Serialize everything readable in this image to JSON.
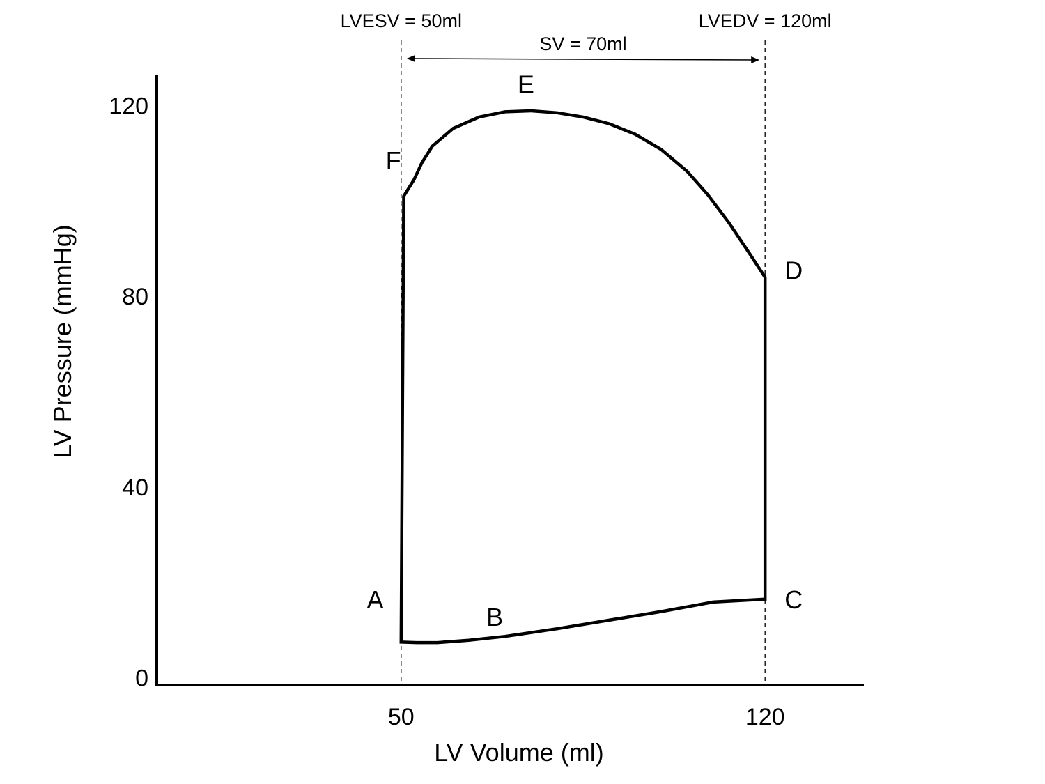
{
  "chart_data": {
    "type": "line",
    "title": "",
    "xlabel": "LV Volume (ml)",
    "ylabel": "LV Pressure (mmHg)",
    "xlim": [
      3,
      139
    ],
    "ylim": [
      -1.5,
      126.5
    ],
    "x_ticks": [
      {
        "value": 50,
        "label": "50"
      },
      {
        "value": 120,
        "label": "120"
      }
    ],
    "y_ticks": [
      {
        "value": 0,
        "label": "0"
      },
      {
        "value": 40,
        "label": "40"
      },
      {
        "value": 80,
        "label": "80"
      },
      {
        "value": 120,
        "label": "120"
      }
    ],
    "grid": false,
    "series": [
      {
        "points": [
          [
            50,
            7.5
          ],
          [
            53,
            7.4
          ],
          [
            57,
            7.4
          ],
          [
            63,
            7.9
          ],
          [
            70,
            8.7
          ],
          [
            80,
            10.3
          ],
          [
            90,
            12.1
          ],
          [
            100,
            13.9
          ],
          [
            110,
            15.9
          ],
          [
            120,
            16.5
          ],
          [
            120,
            84.0
          ],
          [
            117,
            89.0
          ],
          [
            113,
            95.5
          ],
          [
            109,
            101.3
          ],
          [
            105,
            106.2
          ],
          [
            100,
            110.8
          ],
          [
            95,
            114.0
          ],
          [
            90,
            116.2
          ],
          [
            85,
            117.6
          ],
          [
            80,
            118.5
          ],
          [
            75,
            118.9
          ],
          [
            70,
            118.7
          ],
          [
            65,
            117.6
          ],
          [
            60,
            115.2
          ],
          [
            56,
            111.5
          ],
          [
            54,
            108.0
          ],
          [
            52.5,
            104.5
          ],
          [
            50.5,
            101.0
          ],
          [
            50,
            7.5
          ]
        ]
      }
    ],
    "point_labels": [
      {
        "label": "A",
        "x": 45,
        "y": 16.5
      },
      {
        "label": "B",
        "x": 68,
        "y": 12.8
      },
      {
        "label": "C",
        "x": 125.5,
        "y": 16.5
      },
      {
        "label": "D",
        "x": 125.5,
        "y": 85.5
      },
      {
        "label": "E",
        "x": 74,
        "y": 124.5
      },
      {
        "label": "F",
        "x": 48.5,
        "y": 108.5
      }
    ],
    "reference_lines": [
      {
        "axis": "x",
        "value": 50,
        "label": "LVESV = 50ml"
      },
      {
        "axis": "x",
        "value": 120,
        "label": "LVEDV = 120ml"
      }
    ],
    "span_annotation": {
      "from": 50,
      "to": 120,
      "label": "SV = 70ml"
    }
  }
}
